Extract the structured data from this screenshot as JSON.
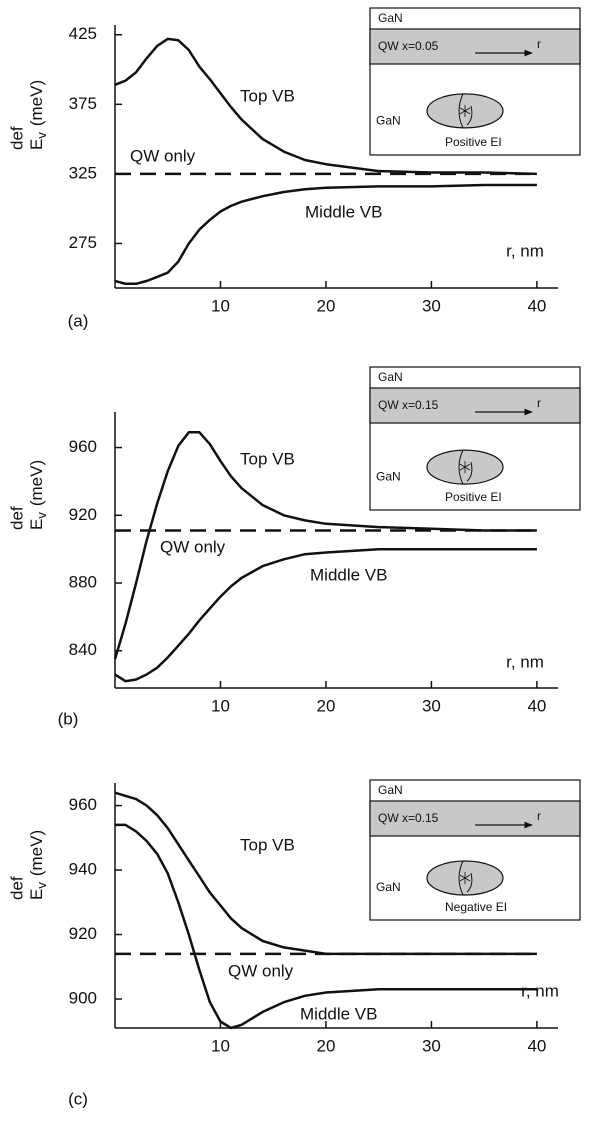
{
  "chart_data": [
    {
      "type": "line",
      "panel_label": "(a)",
      "x_label": "r, nm",
      "y_label": {
        "sup": "def",
        "main": "E",
        "sub": "v",
        "unit": "(meV)"
      },
      "xlim": [
        0,
        42
      ],
      "xticks": [
        10,
        20,
        30,
        40
      ],
      "ylim": [
        243,
        432
      ],
      "yticks": [
        275,
        325,
        375,
        425
      ],
      "x": [
        0,
        1,
        2,
        3,
        4,
        5,
        6,
        7,
        8,
        9,
        10,
        11,
        12,
        14,
        16,
        18,
        20,
        25,
        30,
        35,
        40
      ],
      "series": [
        {
          "name": "Top VB",
          "color": "#111111",
          "values": [
            389,
            392,
            398,
            408,
            417,
            422,
            421,
            414,
            402,
            393,
            383,
            373,
            364,
            350,
            341,
            335,
            332,
            327,
            326,
            326,
            325
          ]
        },
        {
          "name": "Middle VB",
          "color": "#111111",
          "values": [
            248,
            246,
            246,
            248,
            251,
            254,
            262,
            275,
            285,
            292,
            298,
            302,
            305,
            309,
            312,
            314,
            315,
            316,
            316,
            317,
            317
          ]
        }
      ],
      "reference": {
        "name": "QW only",
        "value": 325
      },
      "inset": {
        "top_layer": "GaN",
        "qw_label": "QW  x=0.05",
        "arrow_label": "r",
        "bottom_layer": "GaN",
        "exciton_label": "Positive EI"
      }
    },
    {
      "type": "line",
      "panel_label": "(b)",
      "x_label": "r, nm",
      "y_label": {
        "sup": "def",
        "main": "E",
        "sub": "v",
        "unit": "(meV)"
      },
      "xlim": [
        0,
        42
      ],
      "xticks": [
        10,
        20,
        30,
        40
      ],
      "ylim": [
        818,
        981
      ],
      "yticks": [
        840,
        880,
        920,
        960
      ],
      "x": [
        0,
        1,
        2,
        3,
        4,
        5,
        6,
        7,
        8,
        9,
        10,
        11,
        12,
        14,
        16,
        18,
        20,
        25,
        30,
        35,
        40
      ],
      "series": [
        {
          "name": "Top VB",
          "color": "#111111",
          "values": [
            835,
            856,
            880,
            905,
            927,
            946,
            961,
            969,
            969,
            962,
            952,
            943,
            936,
            926,
            920,
            917,
            915,
            913,
            912,
            911,
            911
          ]
        },
        {
          "name": "Middle VB",
          "color": "#111111",
          "values": [
            826,
            822,
            823,
            826,
            830,
            836,
            843,
            850,
            858,
            865,
            872,
            878,
            883,
            890,
            894,
            897,
            898,
            900,
            900,
            900,
            900
          ]
        }
      ],
      "reference": {
        "name": "QW only",
        "value": 911
      },
      "inset": {
        "top_layer": "GaN",
        "qw_label": "QW  x=0.15",
        "arrow_label": "r",
        "bottom_layer": "GaN",
        "exciton_label": "Positive EI"
      }
    },
    {
      "type": "line",
      "panel_label": "(c)",
      "x_label": "r, nm",
      "y_label": {
        "sup": "def",
        "main": "E",
        "sub": "v",
        "unit": "(meV)"
      },
      "xlim": [
        0,
        42
      ],
      "xticks": [
        10,
        20,
        30,
        40
      ],
      "ylim": [
        891,
        967
      ],
      "yticks": [
        900,
        920,
        940,
        960
      ],
      "x": [
        0,
        1,
        2,
        3,
        4,
        5,
        6,
        7,
        8,
        9,
        10,
        11,
        12,
        14,
        16,
        18,
        20,
        25,
        30,
        35,
        40
      ],
      "series": [
        {
          "name": "Top VB",
          "color": "#111111",
          "values": [
            964,
            963,
            962,
            960,
            957,
            953,
            948,
            943,
            938,
            933,
            929,
            925,
            922,
            918,
            916,
            915,
            914,
            914,
            914,
            914,
            914
          ]
        },
        {
          "name": "Middle VB",
          "color": "#111111",
          "values": [
            954,
            954,
            952,
            949,
            945,
            939,
            930,
            920,
            909,
            899,
            893,
            891,
            892,
            896,
            899,
            901,
            902,
            903,
            903,
            903,
            903
          ]
        }
      ],
      "reference": {
        "name": "QW only",
        "value": 914
      },
      "inset": {
        "top_layer": "GaN",
        "qw_label": "QW  x=0.15",
        "arrow_label": "r",
        "bottom_layer": "GaN",
        "exciton_label": "Negative EI"
      }
    }
  ]
}
